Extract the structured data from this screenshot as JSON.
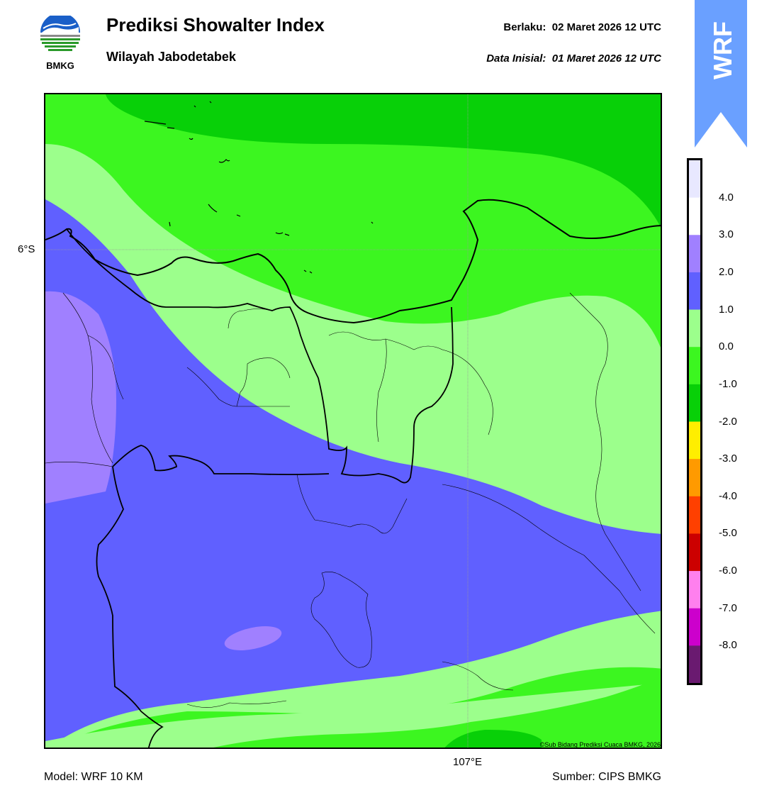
{
  "header": {
    "title": "Prediksi Showalter Index",
    "subtitle": "Wilayah Jabodetabek",
    "valid_label": "Berlaku:",
    "valid_time": "02 Maret 2026 12 UTC",
    "init_label": "Data Inisial:",
    "init_time": "01 Maret 2026 12 UTC"
  },
  "logo": {
    "text": "BMKG",
    "icon": "bmkg-logo"
  },
  "badge": {
    "text": "WRF",
    "color": "#6aa0ff"
  },
  "map": {
    "lat_label": "6°S",
    "lon_label": "107°E",
    "copyright": "©Sub Bidang Prediksi Cuaca BMKG, 2026"
  },
  "colorbar": {
    "labels": [
      "4.0",
      "3.0",
      "2.0",
      "1.0",
      "0.0",
      "-1.0",
      "-2.0",
      "-3.0",
      "-4.0",
      "-5.0",
      "-6.0",
      "-7.0",
      "-8.0"
    ],
    "colors": [
      "#e8e8ff",
      "#ffffff",
      "#a080ff",
      "#6060ff",
      "#9cff8c",
      "#3cf620",
      "#08d008",
      "#ffee00",
      "#ff9a00",
      "#ff4000",
      "#cc0000",
      "#ff80ee",
      "#cc00cc",
      "#6a1a70"
    ]
  },
  "footer": {
    "model": "Model: WRF 10 KM",
    "source": "Sumber: CIPS BMKG"
  }
}
